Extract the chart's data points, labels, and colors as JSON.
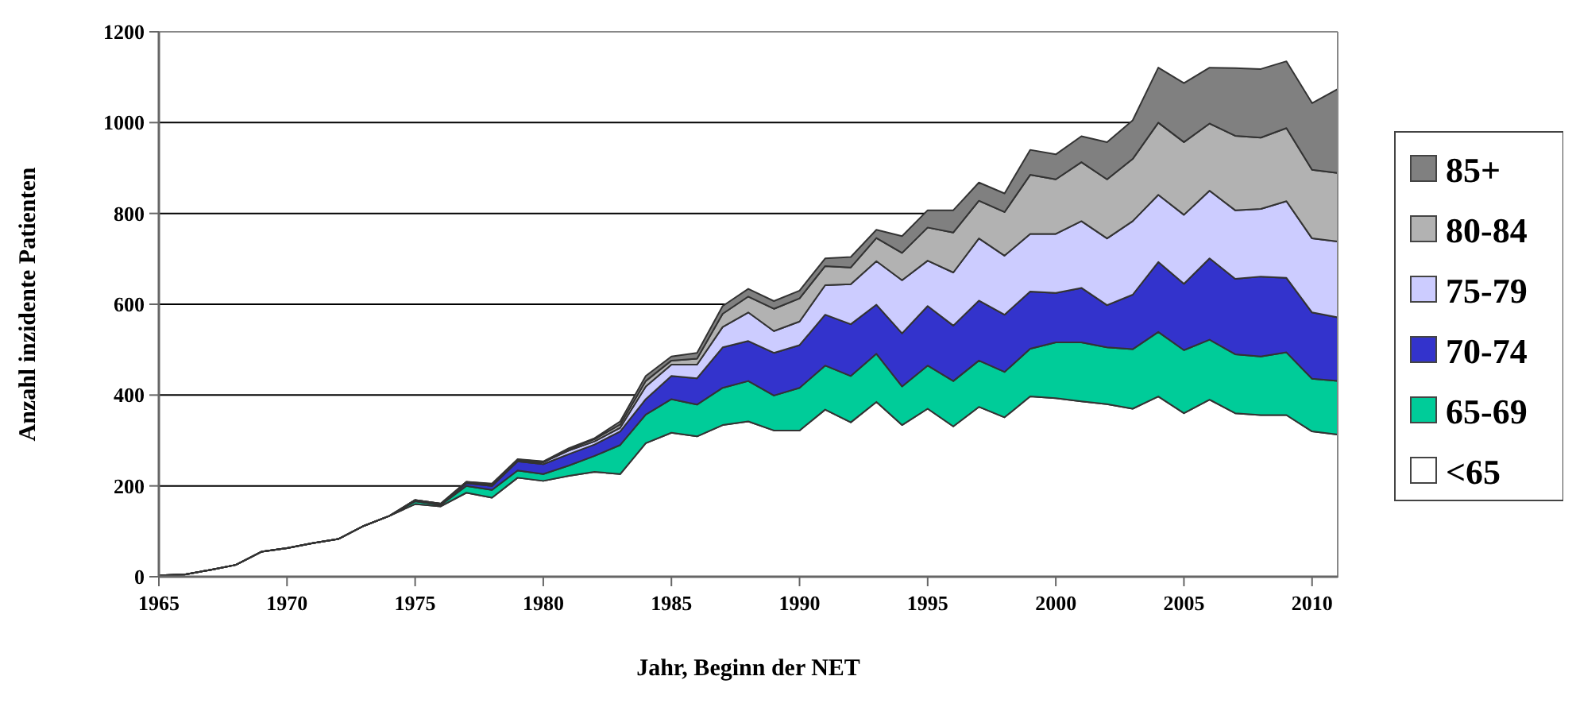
{
  "chart_data": {
    "type": "area",
    "stacked": true,
    "xlabel": "Jahr, Beginn der NET",
    "ylabel": "Anzahl inzidente Patienten",
    "x": [
      1965,
      1966,
      1967,
      1968,
      1969,
      1970,
      1971,
      1972,
      1973,
      1974,
      1975,
      1976,
      1977,
      1978,
      1979,
      1980,
      1981,
      1982,
      1983,
      1984,
      1985,
      1986,
      1987,
      1988,
      1989,
      1990,
      1991,
      1992,
      1993,
      1994,
      1995,
      1996,
      1997,
      1998,
      1999,
      2000,
      2001,
      2002,
      2003,
      2004,
      2005,
      2006,
      2007,
      2008,
      2009,
      2010,
      2011
    ],
    "series": [
      {
        "name": "<65",
        "color": "#ffffff",
        "values": [
          3,
          5,
          15,
          26,
          55,
          63,
          74,
          83,
          112,
          134,
          160,
          155,
          185,
          174,
          218,
          211,
          222,
          231,
          226,
          294,
          317,
          309,
          334,
          342,
          322,
          322,
          368,
          340,
          385,
          334,
          370,
          331,
          374,
          351,
          397,
          393,
          386,
          380,
          370,
          397,
          360,
          390,
          360,
          356,
          356,
          320,
          313
        ]
      },
      {
        "name": "65-69",
        "color": "#00cc99",
        "values": [
          0,
          0,
          0,
          0,
          0,
          0,
          0,
          0,
          0,
          0,
          6,
          3,
          15,
          17,
          16,
          15,
          23,
          35,
          64,
          63,
          74,
          70,
          82,
          89,
          77,
          94,
          97,
          102,
          106,
          85,
          95,
          100,
          102,
          100,
          105,
          123,
          130,
          125,
          131,
          142,
          139,
          132,
          130,
          129,
          138,
          116,
          118
        ]
      },
      {
        "name": "70-74",
        "color": "#3333cc",
        "values": [
          0,
          0,
          0,
          0,
          0,
          0,
          0,
          0,
          0,
          0,
          2,
          2,
          6,
          9,
          20,
          22,
          25,
          25,
          30,
          34,
          51,
          58,
          89,
          88,
          94,
          94,
          112,
          114,
          108,
          117,
          131,
          122,
          132,
          126,
          126,
          109,
          120,
          93,
          120,
          154,
          146,
          179,
          166,
          176,
          164,
          146,
          140
        ]
      },
      {
        "name": "75-79",
        "color": "#ccccff",
        "values": [
          0,
          0,
          0,
          0,
          0,
          0,
          0,
          0,
          0,
          0,
          1,
          1,
          2,
          3,
          2,
          4,
          8,
          7,
          8,
          28,
          25,
          30,
          45,
          63,
          48,
          52,
          65,
          88,
          96,
          117,
          100,
          117,
          137,
          130,
          127,
          130,
          147,
          147,
          162,
          148,
          152,
          149,
          151,
          149,
          169,
          163,
          167
        ]
      },
      {
        "name": "80-84",
        "color": "#b2b2b2",
        "values": [
          0,
          0,
          0,
          0,
          0,
          0,
          0,
          0,
          0,
          0,
          0,
          0,
          1,
          1,
          2,
          1,
          3,
          5,
          7,
          12,
          9,
          13,
          29,
          35,
          49,
          51,
          42,
          37,
          51,
          60,
          73,
          88,
          83,
          96,
          130,
          120,
          130,
          130,
          137,
          159,
          160,
          148,
          164,
          157,
          161,
          151,
          151
        ]
      },
      {
        "name": "85+",
        "color": "#808080",
        "values": [
          0,
          0,
          0,
          0,
          0,
          0,
          0,
          0,
          0,
          0,
          0,
          0,
          0,
          1,
          1,
          1,
          2,
          2,
          7,
          11,
          9,
          13,
          17,
          17,
          17,
          17,
          17,
          23,
          18,
          37,
          38,
          49,
          40,
          41,
          55,
          55,
          57,
          82,
          85,
          121,
          130,
          123,
          149,
          151,
          147,
          147,
          185
        ]
      }
    ],
    "xlim": [
      1965,
      2011
    ],
    "xticks": [
      1965,
      1970,
      1975,
      1980,
      1985,
      1990,
      1995,
      2000,
      2005,
      2010
    ],
    "ylim": [
      0,
      1200
    ],
    "yticks": [
      0,
      200,
      400,
      600,
      800,
      1000,
      1200
    ],
    "grid": "y",
    "legend": "right"
  }
}
